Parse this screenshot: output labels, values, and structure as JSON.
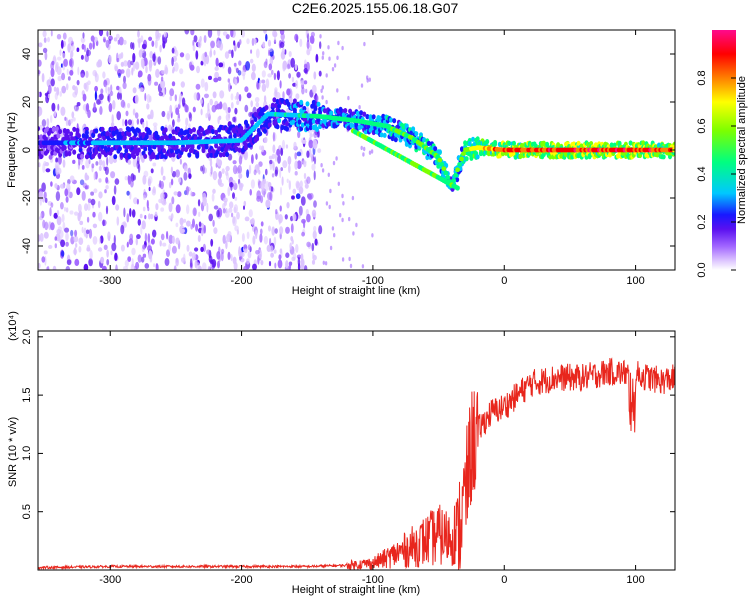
{
  "title": "C2E6.2025.155.06.18.G07",
  "chart_data": [
    {
      "type": "heatmap",
      "xlabel": "Height of straight line (km)",
      "ylabel": "Frequency (Hz)",
      "xlim": [
        -355,
        130
      ],
      "ylim": [
        -50,
        50
      ],
      "xticks": [
        -300,
        -200,
        -100,
        0,
        100
      ],
      "yticks": [
        -40,
        -20,
        0,
        20,
        40
      ],
      "grid": false,
      "colorbar": {
        "label": "Normalized spectral amplitude",
        "range": [
          0,
          1
        ],
        "ticks": [
          0.0,
          0.2,
          0.4,
          0.6,
          0.8
        ],
        "colormap": [
          "#ffffff",
          "#c9a0ff",
          "#8a2be2",
          "#1e1eff",
          "#00c8ff",
          "#00ff80",
          "#7cff00",
          "#ffff00",
          "#ff8000",
          "#ff0000",
          "#ff00a0"
        ]
      },
      "ridge": [
        {
          "x": -350,
          "y": 3,
          "amp": 0.2
        },
        {
          "x": -300,
          "y": 3,
          "amp": 0.3
        },
        {
          "x": -250,
          "y": 3,
          "amp": 0.3
        },
        {
          "x": -200,
          "y": 4,
          "amp": 0.3
        },
        {
          "x": -180,
          "y": 15,
          "amp": 0.3
        },
        {
          "x": -140,
          "y": 14,
          "amp": 0.4
        },
        {
          "x": -110,
          "y": 12,
          "amp": 0.4
        },
        {
          "x": -90,
          "y": 10,
          "amp": 0.45
        },
        {
          "x": -70,
          "y": 5,
          "amp": 0.5
        },
        {
          "x": -50,
          "y": -3,
          "amp": 0.5
        },
        {
          "x": -40,
          "y": -15,
          "amp": 0.4
        },
        {
          "x": -30,
          "y": 0,
          "amp": 0.55
        },
        {
          "x": -20,
          "y": 1,
          "amp": 0.7
        },
        {
          "x": 0,
          "y": 0,
          "amp": 0.85
        },
        {
          "x": 50,
          "y": 0,
          "amp": 0.9
        },
        {
          "x": 100,
          "y": 0,
          "amp": 0.9
        },
        {
          "x": 130,
          "y": 0,
          "amp": 0.85
        }
      ]
    },
    {
      "type": "line",
      "xlabel": "Height of straight line (km)",
      "ylabel": "SNR (10 * v/v)",
      "y_multiplier": "(x10⁴)",
      "xlim": [
        -355,
        130
      ],
      "ylim": [
        0,
        2.05
      ],
      "xticks": [
        -300,
        -200,
        -100,
        0,
        100
      ],
      "yticks": [
        0.5,
        1.0,
        1.5,
        2.0
      ],
      "grid": false,
      "series": [
        {
          "color": "#e8261d",
          "x": [
            -355,
            -300,
            -250,
            -200,
            -150,
            -120,
            -100,
            -90,
            -80,
            -70,
            -60,
            -50,
            -45,
            -40,
            -35,
            -30,
            -25,
            -20,
            -10,
            0,
            10,
            20,
            40,
            60,
            80,
            100,
            110,
            120,
            130
          ],
          "y": [
            0.02,
            0.03,
            0.03,
            0.03,
            0.03,
            0.04,
            0.06,
            0.1,
            0.15,
            0.2,
            0.25,
            0.3,
            0.28,
            0.3,
            0.35,
            0.6,
            1.05,
            1.2,
            1.35,
            1.4,
            1.5,
            1.6,
            1.65,
            1.65,
            1.7,
            1.68,
            1.65,
            1.62,
            1.65
          ]
        }
      ]
    }
  ]
}
